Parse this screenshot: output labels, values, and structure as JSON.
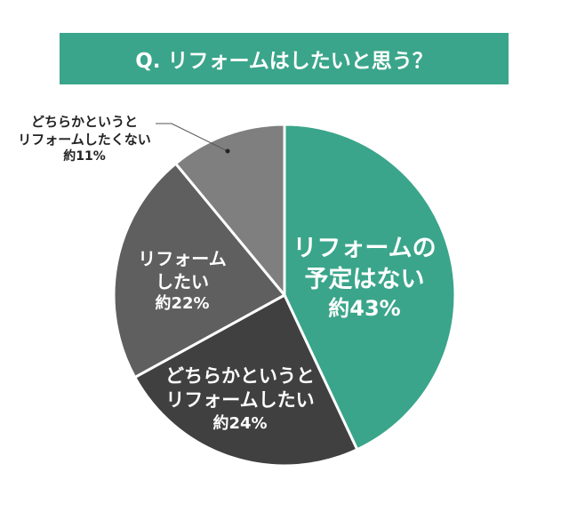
{
  "chart_data": {
    "type": "pie",
    "title": "Q. リフォームはしたいと思う？",
    "start": "top",
    "direction": "clockwise",
    "slices": [
      {
        "label_lines": [
          "リフォームの",
          "予定はない"
        ],
        "value_label": "約43%",
        "value": 43,
        "color": "#3aa58a"
      },
      {
        "label_lines": [
          "どちらかというと",
          "リフォームしたい"
        ],
        "value_label": "約24%",
        "value": 24,
        "color": "#404040"
      },
      {
        "label_lines": [
          "リフォーム",
          "したい"
        ],
        "value_label": "約22%",
        "value": 22,
        "color": "#5f5f5f"
      },
      {
        "label_lines": [
          "どちらかというと",
          "リフォームしたくない"
        ],
        "value_label": "約11%",
        "value": 11,
        "color": "#7f7f7f"
      }
    ]
  }
}
